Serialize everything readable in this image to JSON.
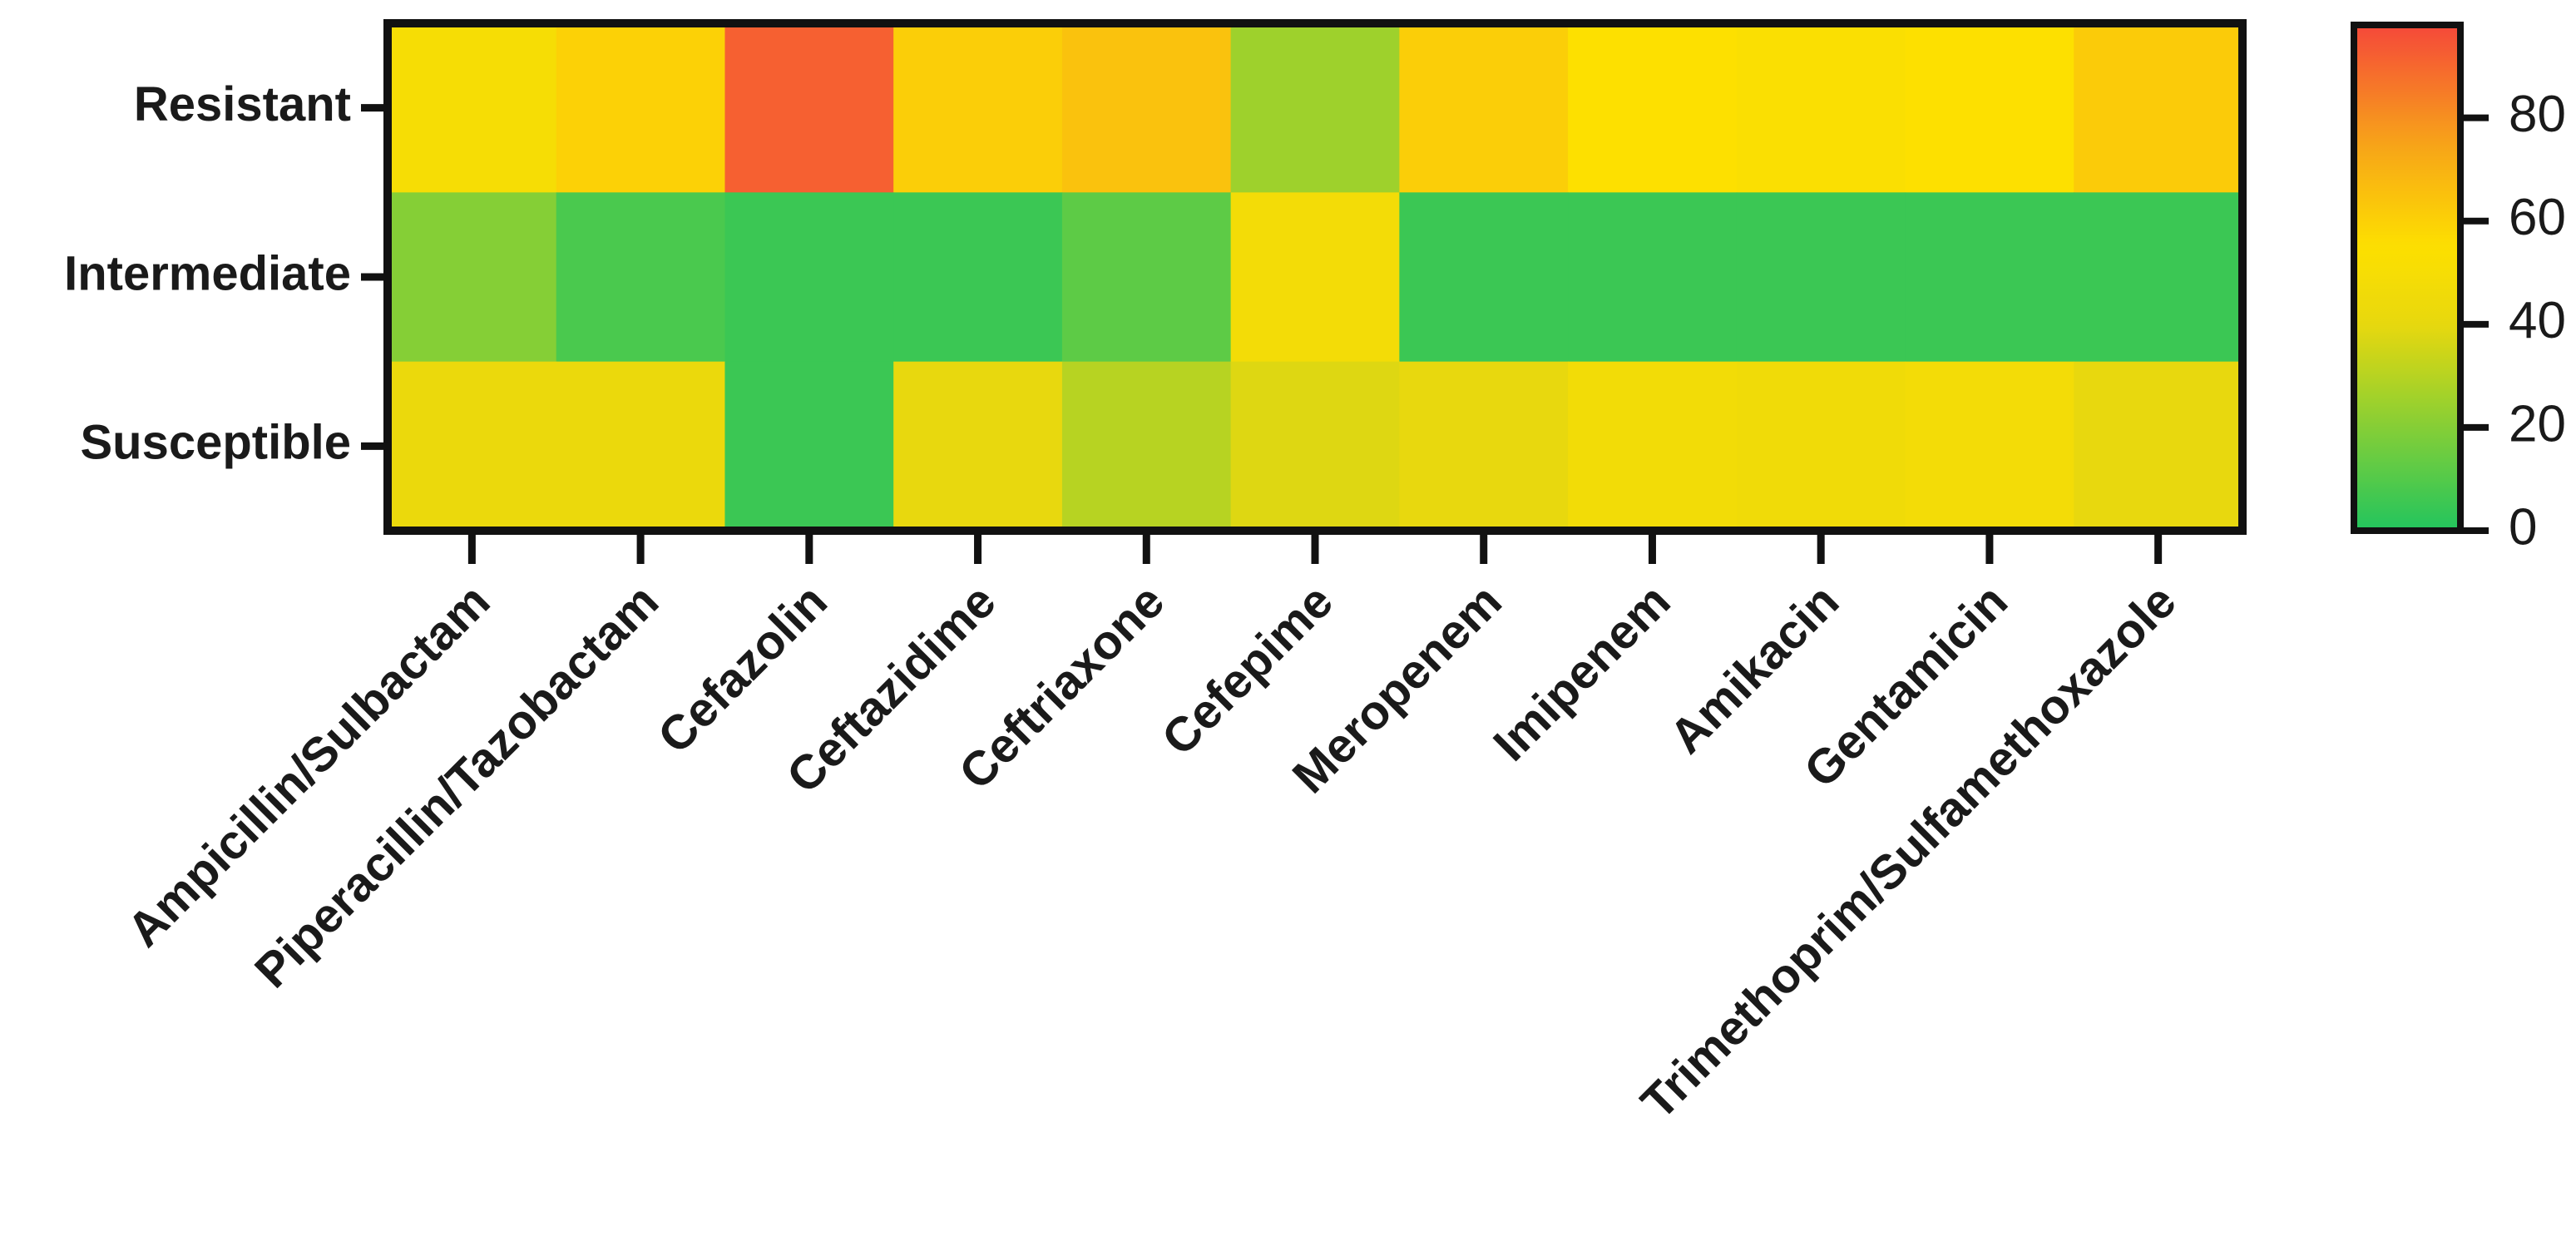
{
  "chart_data": {
    "type": "heatmap",
    "title": "",
    "xlabel": "",
    "ylabel": "",
    "rows": [
      "Resistant",
      "Intermediate",
      "Susceptible"
    ],
    "columns": [
      "Ampicillin/Sulbactam",
      "Piperacillin/Tazobactam",
      "Cefazolin",
      "Ceftazidime",
      "Ceftriaxone",
      "Cefepime",
      "Meropenem",
      "Imipenem",
      "Amikacin",
      "Gentamicin",
      "Trimethoprim/Sulfamethoxazole"
    ],
    "values": [
      [
        50,
        60,
        92,
        61,
        65,
        25,
        61,
        55,
        53,
        55,
        62
      ],
      [
        20,
        8,
        5,
        5,
        12,
        48,
        5,
        5,
        5,
        5,
        5
      ],
      [
        42,
        42,
        5,
        40,
        30,
        38,
        40,
        47,
        46,
        48,
        40
      ]
    ],
    "colorbar": {
      "range": [
        0,
        98
      ],
      "ticks": [
        "0",
        "20",
        "40",
        "60",
        "80"
      ],
      "colors": [
        "#22c55e",
        "#e8d80e",
        "#fde000",
        "#f7a319",
        "#f5483a"
      ]
    }
  }
}
